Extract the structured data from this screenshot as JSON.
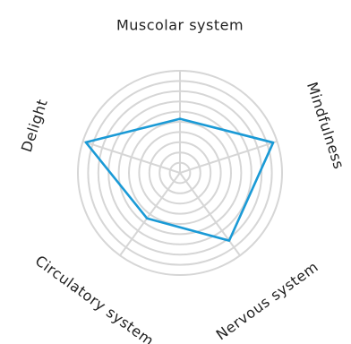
{
  "chart_data": {
    "type": "radar",
    "axes": [
      "Muscolar system",
      "Mindfulness",
      "Nervous system",
      "Circulatory system",
      "Delight"
    ],
    "rmax": 10,
    "ring_count": 10,
    "grid": true,
    "series": [
      {
        "values": [
          5.3,
          9.6,
          8.2,
          5.5,
          9.7
        ],
        "color": "#1a9ad6"
      }
    ]
  }
}
